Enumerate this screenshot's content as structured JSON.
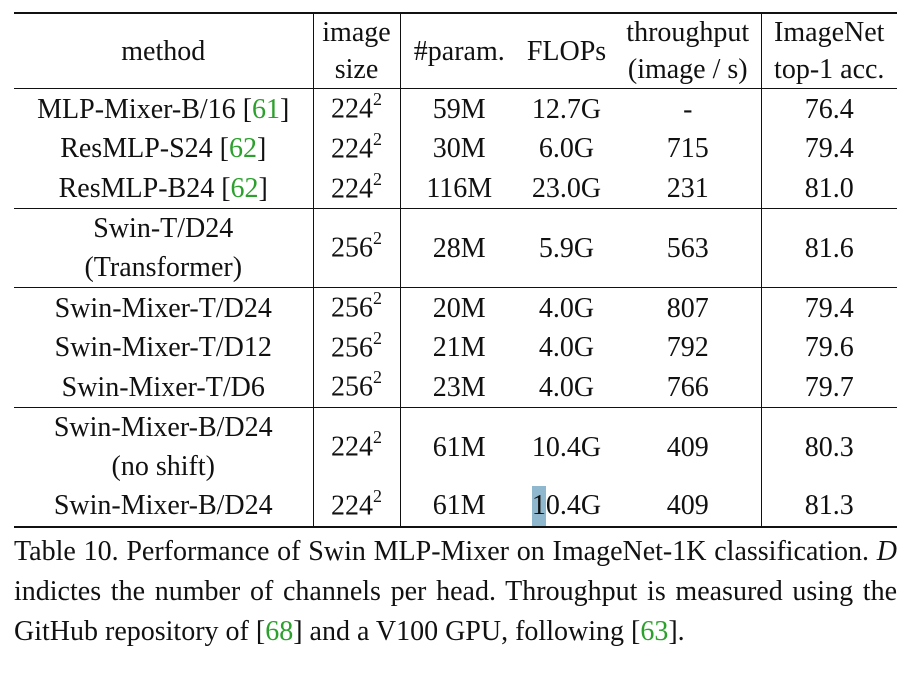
{
  "table": {
    "headers": {
      "method": "method",
      "image_size": [
        "image",
        "size"
      ],
      "params": "#param.",
      "flops": "FLOPs",
      "throughput": [
        "throughput",
        "(image / s)"
      ],
      "accuracy": [
        "ImageNet",
        "top-1 acc."
      ]
    },
    "groups": [
      {
        "rows": [
          {
            "method": "MLP-Mixer-B/16",
            "ref": "61",
            "size_base": "224",
            "size_exp": "2",
            "params": "59M",
            "flops": "12.7G",
            "throughput": "-",
            "acc": "76.4"
          },
          {
            "method": "ResMLP-S24",
            "ref": "62",
            "size_base": "224",
            "size_exp": "2",
            "params": "30M",
            "flops": "6.0G",
            "throughput": "715",
            "acc": "79.4"
          },
          {
            "method": "ResMLP-B24",
            "ref": "62",
            "size_base": "224",
            "size_exp": "2",
            "params": "116M",
            "flops": "23.0G",
            "throughput": "231",
            "acc": "81.0"
          }
        ]
      },
      {
        "rows": [
          {
            "method_lines": [
              "Swin-T/D24",
              "(Transformer)"
            ],
            "size_base": "256",
            "size_exp": "2",
            "params": "28M",
            "flops": "5.9G",
            "throughput": "563",
            "acc": "81.6"
          }
        ]
      },
      {
        "rows": [
          {
            "method": "Swin-Mixer-T/D24",
            "size_base": "256",
            "size_exp": "2",
            "params": "20M",
            "flops": "4.0G",
            "throughput": "807",
            "acc": "79.4"
          },
          {
            "method": "Swin-Mixer-T/D12",
            "size_base": "256",
            "size_exp": "2",
            "params": "21M",
            "flops": "4.0G",
            "throughput": "792",
            "acc": "79.6"
          },
          {
            "method": "Swin-Mixer-T/D6",
            "size_base": "256",
            "size_exp": "2",
            "params": "23M",
            "flops": "4.0G",
            "throughput": "766",
            "acc": "79.7"
          }
        ]
      },
      {
        "rows": [
          {
            "method_lines": [
              "Swin-Mixer-B/D24",
              "(no shift)"
            ],
            "size_base": "224",
            "size_exp": "2",
            "params": "61M",
            "flops": "10.4G",
            "throughput": "409",
            "acc": "80.3"
          },
          {
            "method": "Swin-Mixer-B/D24",
            "size_base": "224",
            "size_exp": "2",
            "params": "61M",
            "flops_head": "1",
            "flops_tail": "0.4G",
            "throughput": "409",
            "acc": "81.3"
          }
        ]
      }
    ]
  },
  "caption": {
    "prefix": "Table 10. Performance of Swin MLP-Mixer on ImageNet-1K classification.",
    "var": "D",
    "middle": "indictes the number of channels per head. Throughput is measured using the GitHub repository of [",
    "ref1": "68",
    "after_ref1": "] and a V100 GPU, following [",
    "ref2": "63",
    "suffix": "]."
  },
  "colors": {
    "reference": "#2ca02c",
    "cursor_highlight": "#8fb8cf"
  }
}
